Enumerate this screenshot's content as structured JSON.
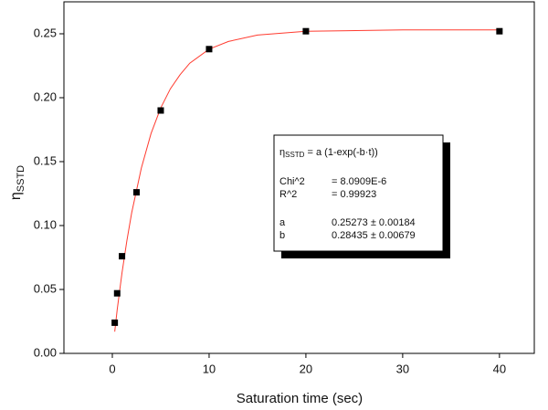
{
  "chart_data": {
    "type": "scatter",
    "x_label": "Saturation time (sec)",
    "y_label": "η",
    "y_label_sub": "SSTD",
    "x": [
      0.25,
      0.5,
      1,
      2.5,
      5,
      10,
      20,
      40
    ],
    "series": [
      {
        "color": "#000000",
        "values": [
          0.024,
          0.047,
          0.076,
          0.126,
          0.19,
          0.238,
          0.252,
          0.252
        ]
      }
    ],
    "fit": {
      "color": "#ff3b2f",
      "x": [
        0.25,
        0.5,
        1,
        1.5,
        2,
        3,
        4,
        5,
        6,
        7,
        8,
        10,
        12,
        15,
        20,
        30,
        40
      ],
      "values": [
        0.017,
        0.034,
        0.063,
        0.088,
        0.11,
        0.145,
        0.172,
        0.192,
        0.207,
        0.218,
        0.227,
        0.238,
        0.244,
        0.249,
        0.252,
        0.253,
        0.253
      ]
    },
    "xlim": [
      -5,
      43.6
    ],
    "ylim": [
      0,
      0.275
    ],
    "xticks": [
      0,
      10,
      20,
      30,
      40
    ],
    "yticks": [
      {
        "value": 0,
        "label": "0.00"
      },
      {
        "value": 0.05,
        "label": "0.05"
      },
      {
        "value": 0.1,
        "label": "0.10"
      },
      {
        "value": 0.15,
        "label": "0.15"
      },
      {
        "value": 0.2,
        "label": "0.20"
      },
      {
        "value": 0.25,
        "label": "0.25"
      }
    ],
    "annotation": {
      "eq_symbol": "η",
      "eq_sub": "SSTD",
      "eq_rest": " = a (1-exp(-b·t))",
      "rows": [
        [
          "Chi^2",
          "= 8.0909E-6"
        ],
        [
          "R^2",
          "= 0.99923"
        ],
        [
          "a",
          "0.25273 ± 0.00184"
        ],
        [
          "b",
          "0.28435 ± 0.00679"
        ]
      ]
    }
  }
}
